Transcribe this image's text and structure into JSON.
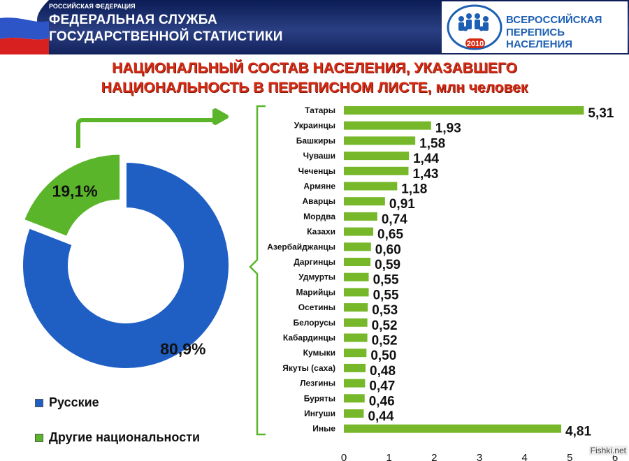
{
  "header": {
    "agency_small": "РОССИЙСКАЯ ФЕДЕРАЦИЯ",
    "agency_line1": "ФЕДЕРАЛЬНАЯ СЛУЖБА",
    "agency_line2": "ГОСУДАРСТВЕННОЙ СТАТИСТИКИ",
    "census_line1": "ВСЕРОССИЙСКАЯ",
    "census_line2": "ПЕРЕПИСЬ НАСЕЛЕНИЯ",
    "census_year": "2010"
  },
  "title_line1": "НАЦИОНАЛЬНЫЙ СОСТАВ НАСЕЛЕНИЯ, УКАЗАВШЕГО",
  "title_line2": "НАЦИОНАЛЬНОСТЬ В ПЕРЕПИСНОМ ЛИСТЕ, млн человек",
  "watermark": "Fishki.net",
  "colors": {
    "blue": "#1f5fc4",
    "green": "#5ab52a",
    "bar": "#76b82a",
    "title": "#d62a12"
  },
  "chart_data": [
    {
      "type": "pie",
      "categories": [
        "Русские",
        "Другие национальности"
      ],
      "values": [
        80.9,
        19.1
      ],
      "labels": [
        "80,9%",
        "19,1%"
      ],
      "legend": "bottom-left",
      "style": "donut"
    },
    {
      "type": "bar",
      "orientation": "horizontal",
      "categories": [
        "Татары",
        "Украинцы",
        "Башкиры",
        "Чуваши",
        "Чеченцы",
        "Армяне",
        "Аварцы",
        "Мордва",
        "Казахи",
        "Азербайджанцы",
        "Даргинцы",
        "Удмурты",
        "Марийцы",
        "Осетины",
        "Белорусы",
        "Кабардинцы",
        "Кумыки",
        "Якуты (саха)",
        "Лезгины",
        "Буряты",
        "Ингуши",
        "Иные"
      ],
      "values": [
        5.31,
        1.93,
        1.58,
        1.44,
        1.43,
        1.18,
        0.91,
        0.74,
        0.65,
        0.6,
        0.59,
        0.55,
        0.55,
        0.53,
        0.52,
        0.52,
        0.5,
        0.48,
        0.47,
        0.46,
        0.44,
        4.81
      ],
      "value_labels": [
        "5,31",
        "1,93",
        "1,58",
        "1,44",
        "1,43",
        "1,18",
        "0,91",
        "0,74",
        "0,65",
        "0,60",
        "0,59",
        "0,55",
        "0,55",
        "0,53",
        "0,52",
        "0,52",
        "0,50",
        "0,48",
        "0,47",
        "0,46",
        "0,44",
        "4,81"
      ],
      "xticks": [
        "0",
        "1",
        "2",
        "3",
        "4",
        "5",
        "6"
      ],
      "xlim": [
        0,
        6
      ],
      "grid": false
    }
  ]
}
